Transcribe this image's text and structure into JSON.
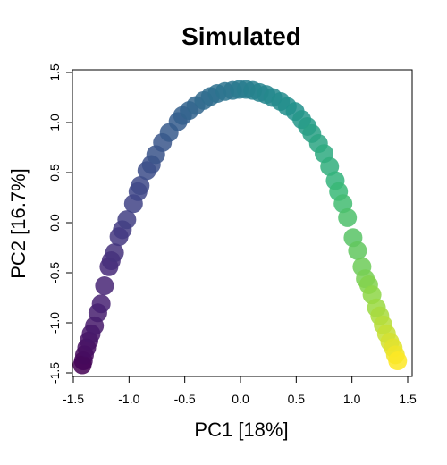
{
  "chart_data": {
    "type": "scatter",
    "title": "Simulated",
    "xlabel": "PC1 [18%]",
    "ylabel": "PC2 [16.7%]",
    "xlim": [
      -1.5,
      1.5
    ],
    "ylim": [
      -1.5,
      1.5
    ],
    "x_ticks": [
      "-1.5",
      "-1.0",
      "-0.5",
      "0.0",
      "0.5",
      "1.0",
      "1.5"
    ],
    "y_ticks": [
      "-1.5",
      "-1.0",
      "-0.5",
      "0.0",
      "0.5",
      "1.0",
      "1.5"
    ],
    "grid": false,
    "legend": "none",
    "colormap": "viridis",
    "points": [
      {
        "x": -1.42,
        "y": -1.42
      },
      {
        "x": -1.41,
        "y": -1.38
      },
      {
        "x": -1.4,
        "y": -1.32
      },
      {
        "x": -1.38,
        "y": -1.25
      },
      {
        "x": -1.36,
        "y": -1.18
      },
      {
        "x": -1.34,
        "y": -1.11
      },
      {
        "x": -1.31,
        "y": -1.03
      },
      {
        "x": -1.28,
        "y": -0.9
      },
      {
        "x": -1.25,
        "y": -0.81
      },
      {
        "x": -1.22,
        "y": -0.63
      },
      {
        "x": -1.18,
        "y": -0.44
      },
      {
        "x": -1.16,
        "y": -0.38
      },
      {
        "x": -1.13,
        "y": -0.3
      },
      {
        "x": -1.09,
        "y": -0.14
      },
      {
        "x": -1.06,
        "y": -0.07
      },
      {
        "x": -1.02,
        "y": 0.03
      },
      {
        "x": -0.96,
        "y": 0.19
      },
      {
        "x": -0.92,
        "y": 0.31
      },
      {
        "x": -0.9,
        "y": 0.37
      },
      {
        "x": -0.84,
        "y": 0.52
      },
      {
        "x": -0.8,
        "y": 0.58
      },
      {
        "x": -0.76,
        "y": 0.68
      },
      {
        "x": -0.7,
        "y": 0.8
      },
      {
        "x": -0.64,
        "y": 0.9
      },
      {
        "x": -0.56,
        "y": 1.01
      },
      {
        "x": -0.52,
        "y": 1.07
      },
      {
        "x": -0.46,
        "y": 1.12
      },
      {
        "x": -0.4,
        "y": 1.17
      },
      {
        "x": -0.33,
        "y": 1.22
      },
      {
        "x": -0.27,
        "y": 1.26
      },
      {
        "x": -0.21,
        "y": 1.29
      },
      {
        "x": -0.14,
        "y": 1.31
      },
      {
        "x": -0.07,
        "y": 1.32
      },
      {
        "x": -0.01,
        "y": 1.33
      },
      {
        "x": 0.05,
        "y": 1.33
      },
      {
        "x": 0.11,
        "y": 1.32
      },
      {
        "x": 0.17,
        "y": 1.3
      },
      {
        "x": 0.23,
        "y": 1.28
      },
      {
        "x": 0.29,
        "y": 1.25
      },
      {
        "x": 0.36,
        "y": 1.21
      },
      {
        "x": 0.42,
        "y": 1.16
      },
      {
        "x": 0.49,
        "y": 1.11
      },
      {
        "x": 0.55,
        "y": 1.03
      },
      {
        "x": 0.6,
        "y": 0.96
      },
      {
        "x": 0.64,
        "y": 0.89
      },
      {
        "x": 0.7,
        "y": 0.79
      },
      {
        "x": 0.75,
        "y": 0.69
      },
      {
        "x": 0.8,
        "y": 0.56
      },
      {
        "x": 0.85,
        "y": 0.42
      },
      {
        "x": 0.88,
        "y": 0.31
      },
      {
        "x": 0.92,
        "y": 0.19
      },
      {
        "x": 0.96,
        "y": 0.05
      },
      {
        "x": 1.01,
        "y": -0.15
      },
      {
        "x": 1.05,
        "y": -0.28
      },
      {
        "x": 1.09,
        "y": -0.44
      },
      {
        "x": 1.12,
        "y": -0.56
      },
      {
        "x": 1.15,
        "y": -0.62
      },
      {
        "x": 1.18,
        "y": -0.72
      },
      {
        "x": 1.22,
        "y": -0.85
      },
      {
        "x": 1.25,
        "y": -0.93
      },
      {
        "x": 1.28,
        "y": -1.02
      },
      {
        "x": 1.31,
        "y": -1.11
      },
      {
        "x": 1.34,
        "y": -1.19
      },
      {
        "x": 1.37,
        "y": -1.25
      },
      {
        "x": 1.39,
        "y": -1.32
      },
      {
        "x": 1.41,
        "y": -1.38
      }
    ]
  }
}
